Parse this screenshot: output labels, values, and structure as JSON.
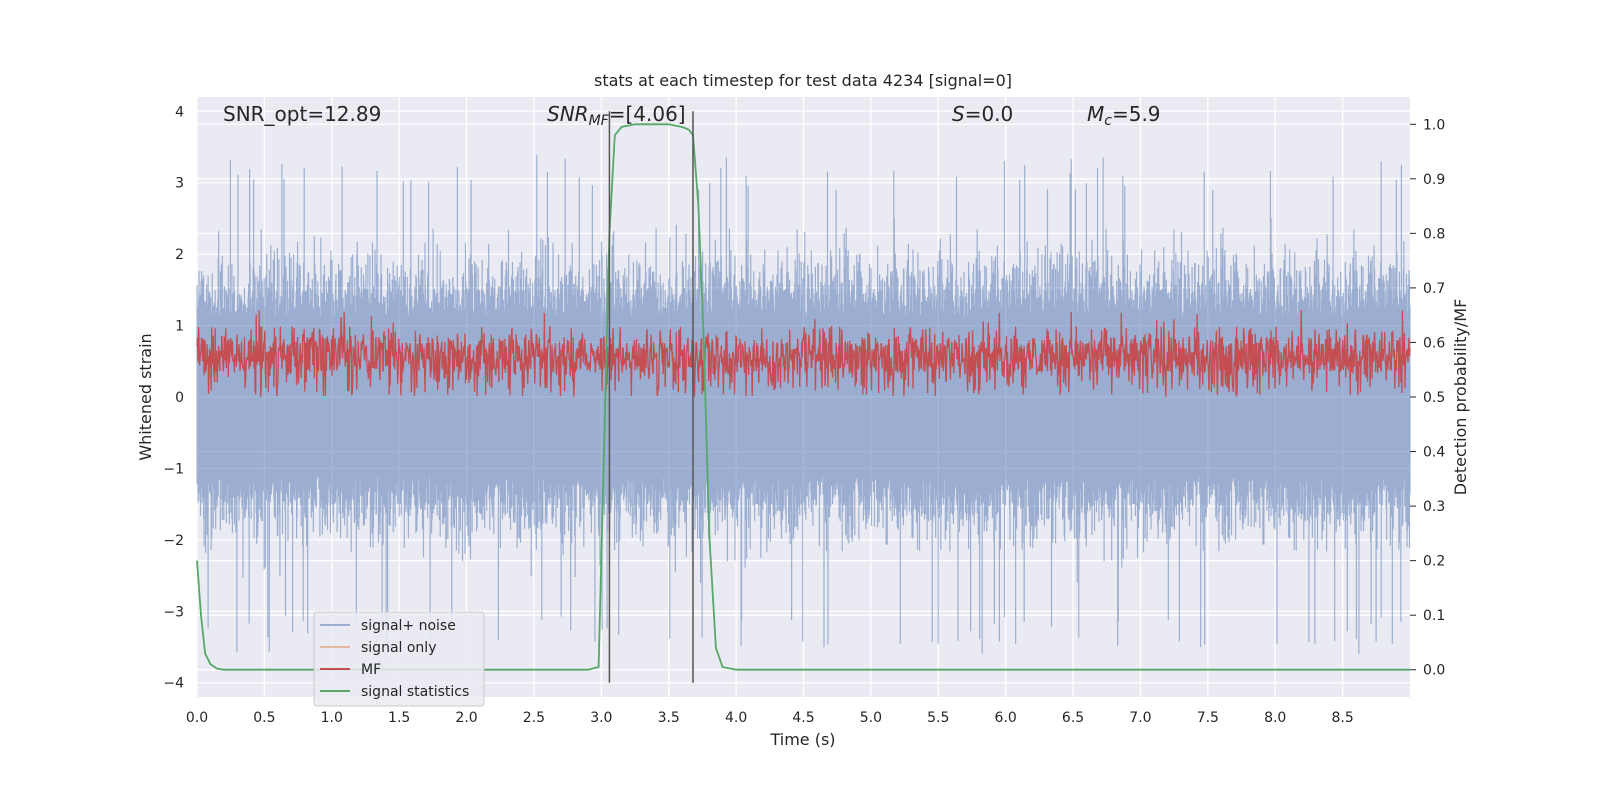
{
  "chart_data": {
    "type": "line",
    "title": "stats at each timestep for test data 4234 [signal=0]",
    "xlabel": "Time (s)",
    "ylabel": "Whitened strain",
    "y2label": "Detection probability/MF",
    "xlim": [
      0.0,
      9.0
    ],
    "ylim": [
      -4.2,
      4.2
    ],
    "y2lim": [
      -0.05,
      1.05
    ],
    "x_ticks": [
      "0.0",
      "0.5",
      "1.0",
      "1.5",
      "2.0",
      "2.5",
      "3.0",
      "3.5",
      "4.0",
      "4.5",
      "5.0",
      "5.5",
      "6.0",
      "6.5",
      "7.0",
      "7.5",
      "8.0",
      "8.5"
    ],
    "y_ticks": [
      "4",
      "3",
      "2",
      "1",
      "0",
      "−1",
      "−2",
      "−3",
      "−4"
    ],
    "y2_ticks": [
      "1.0",
      "0.9",
      "0.8",
      "0.7",
      "0.6",
      "0.5",
      "0.4",
      "0.3",
      "0.2",
      "0.1",
      "0.0"
    ],
    "grid": true,
    "legend_position": "lower-left",
    "annotations": {
      "snr_opt": "SNR_opt=12.89",
      "snr_mf_main": "SNR",
      "snr_mf_sub": "MF",
      "snr_mf_value": "=[4.06]",
      "s_symbol": "S",
      "s_value": "=0.0",
      "mc_symbol": "M",
      "mc_sub": "c",
      "mc_value": "=5.9"
    },
    "vertical_markers_x": [
      3.06,
      3.68
    ],
    "series": [
      {
        "name": "signal+ noise",
        "color": "#4c72b0",
        "axis": "left",
        "envelope": {
          "typical_amplitude": 2.0,
          "max": 3.4,
          "min": -3.6
        }
      },
      {
        "name": "signal only",
        "color": "#dd8452",
        "axis": "left",
        "values": []
      },
      {
        "name": "MF",
        "color": "#c44e52",
        "axis": "right",
        "range": [
          0.5,
          0.63
        ]
      },
      {
        "name": "signal statistics",
        "color": "#55a868",
        "axis": "right",
        "x": [
          0.0,
          0.03,
          0.06,
          0.1,
          0.15,
          0.2,
          0.3,
          2.9,
          2.98,
          3.02,
          3.06,
          3.1,
          3.15,
          3.25,
          3.5,
          3.6,
          3.65,
          3.68,
          3.72,
          3.76,
          3.8,
          3.85,
          3.9,
          4.0,
          9.0
        ],
        "values": [
          0.2,
          0.1,
          0.03,
          0.01,
          0.002,
          0.0,
          0.0,
          0.0,
          0.005,
          0.4,
          0.8,
          0.98,
          0.995,
          1.0,
          1.0,
          0.995,
          0.99,
          0.98,
          0.85,
          0.6,
          0.25,
          0.04,
          0.005,
          0.0,
          0.0
        ]
      }
    ]
  }
}
